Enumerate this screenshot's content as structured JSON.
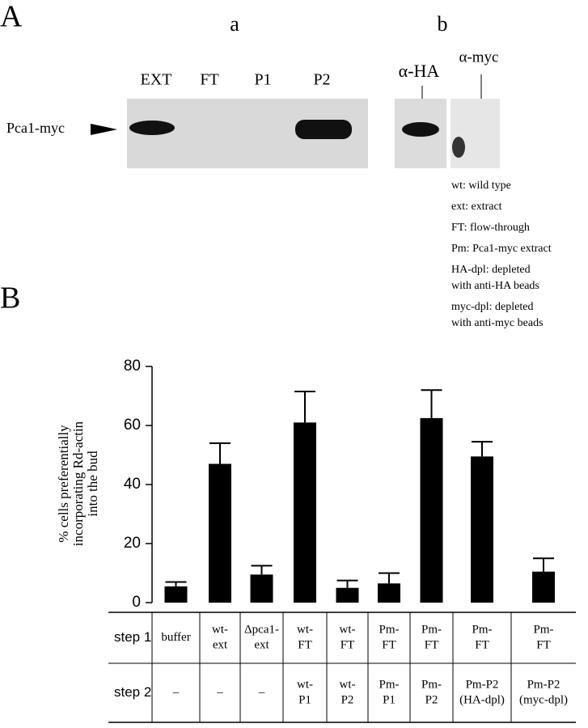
{
  "panel_labels": [
    "A",
    "B"
  ],
  "blot": {
    "sub_a": "a",
    "sub_b": "b",
    "lanes": [
      "EXT",
      "FT",
      "P1",
      "P2"
    ],
    "antibodies": [
      "α-HA",
      "α-myc"
    ],
    "band_label": "Pca1-myc"
  },
  "legend": [
    [
      "wt: wild  type"
    ],
    [
      "ext: extract"
    ],
    [
      "FT: flow-through"
    ],
    [
      "Pm: Pca1-myc extract"
    ],
    [
      "HA-dpl: depleted",
      "with anti-HA beads"
    ],
    [
      "myc-dpl: depleted",
      "with anti-myc beads"
    ]
  ],
  "chart_data": {
    "type": "bar",
    "y_label": [
      "% cells preferentially",
      "incorporating Rd-actin",
      "into the bud"
    ],
    "values": [
      5.5,
      47,
      9.5,
      61,
      5,
      6.5,
      62.5,
      49.5,
      10.5
    ],
    "errors": [
      1.5,
      7,
      3,
      10.5,
      2.5,
      3.5,
      9.5,
      5,
      4.5
    ],
    "color": "#000000",
    "ylim": [
      0,
      80
    ],
    "yticks": [
      0,
      20,
      40,
      60,
      80
    ]
  },
  "table": {
    "row_labels": [
      "step 1",
      "step 2"
    ],
    "rows": [
      [
        [
          "buffer"
        ],
        [
          "wt-",
          "ext"
        ],
        [
          "Δpca1-",
          "ext"
        ],
        [
          "wt-",
          "FT"
        ],
        [
          "wt-",
          "FT"
        ],
        [
          "Pm-",
          "FT"
        ],
        [
          "Pm-",
          "FT"
        ],
        [
          "Pm-",
          "FT"
        ],
        [
          "Pm-",
          "FT"
        ]
      ],
      [
        [
          "–"
        ],
        [
          "–"
        ],
        [
          "–"
        ],
        [
          "wt-",
          "P1"
        ],
        [
          "wt-",
          "P2"
        ],
        [
          "Pm-",
          "P1"
        ],
        [
          "Pm-",
          "P2"
        ],
        [
          "Pm-P2",
          "(HA-dpl)"
        ],
        [
          "Pm-P2",
          "(myc-dpl)"
        ]
      ]
    ]
  }
}
